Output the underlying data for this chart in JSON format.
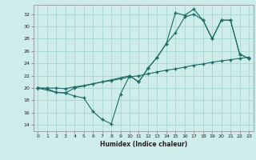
{
  "bg_color": "#ceecea",
  "line_color": "#1c6b65",
  "grid_color": "#aad4d0",
  "axis_color": "#999999",
  "xlabel": "Humidex (Indice chaleur)",
  "xlim": [
    -0.5,
    23.5
  ],
  "ylim": [
    13.0,
    33.5
  ],
  "yticks": [
    14,
    16,
    18,
    20,
    22,
    24,
    26,
    28,
    30,
    32
  ],
  "xticks": [
    0,
    1,
    2,
    3,
    4,
    5,
    6,
    7,
    8,
    9,
    10,
    11,
    12,
    13,
    14,
    15,
    16,
    17,
    18,
    19,
    20,
    21,
    22,
    23
  ],
  "line1_x": [
    0,
    1,
    2,
    3,
    4,
    5,
    6,
    7,
    8,
    9,
    10,
    11,
    12,
    13,
    14,
    15,
    16,
    17,
    18,
    19,
    20,
    21,
    22,
    23
  ],
  "line1_y": [
    20.0,
    20.0,
    20.0,
    19.9,
    20.2,
    20.4,
    20.7,
    21.0,
    21.2,
    21.5,
    21.8,
    22.0,
    22.3,
    22.6,
    22.9,
    23.1,
    23.4,
    23.7,
    23.9,
    24.2,
    24.4,
    24.6,
    24.8,
    25.0
  ],
  "line2_x": [
    0,
    2,
    3,
    4,
    10,
    11,
    12,
    13,
    14,
    15,
    16,
    17,
    18,
    19,
    20,
    21,
    22,
    23
  ],
  "line2_y": [
    20.0,
    19.3,
    19.2,
    20.0,
    22.0,
    21.0,
    23.2,
    25.0,
    27.2,
    29.0,
    31.5,
    32.0,
    31.0,
    28.0,
    31.0,
    31.0,
    25.5,
    24.8
  ],
  "line3_x": [
    0,
    1,
    2,
    3,
    4,
    5,
    6,
    7,
    8,
    9,
    10,
    11,
    12,
    13,
    14,
    15,
    16,
    17,
    18,
    19,
    20,
    21,
    22,
    23
  ],
  "line3_y": [
    20.0,
    19.9,
    19.3,
    19.2,
    18.7,
    18.4,
    16.2,
    14.9,
    14.2,
    19.0,
    22.0,
    21.0,
    23.2,
    25.0,
    27.2,
    32.2,
    31.8,
    32.8,
    31.0,
    28.0,
    31.0,
    31.0,
    25.5,
    24.8
  ]
}
